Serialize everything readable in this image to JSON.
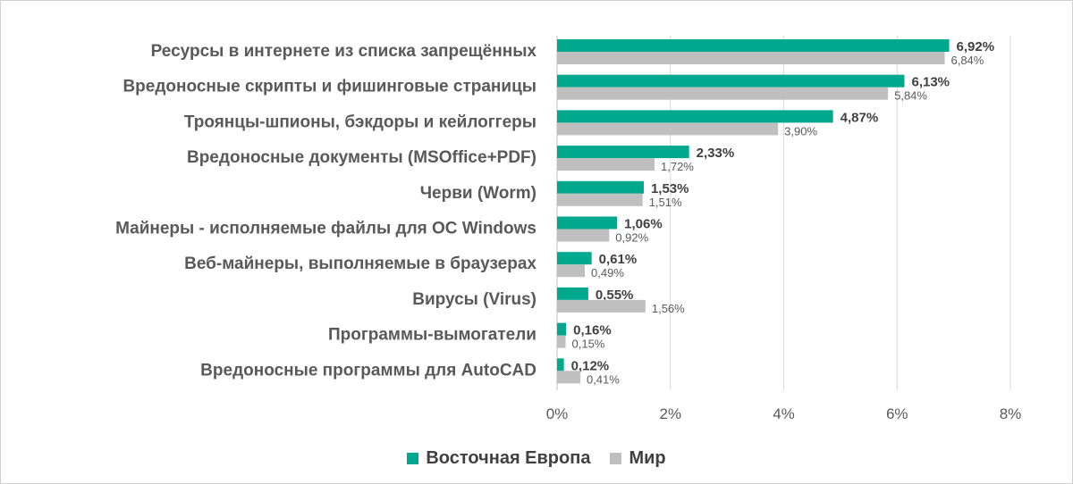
{
  "chart_data": {
    "type": "bar",
    "orientation": "horizontal",
    "categories": [
      "Ресурсы в интернете из списка запрещённых",
      "Вредоносные скрипты и фишинговые страницы",
      "Троянцы-шпионы, бэкдоры и кейлоггеры",
      "Вредоносные документы (MSOffice+PDF)",
      "Черви (Worm)",
      "Майнеры - исполняемые файлы для ОС Windows",
      "Веб-майнеры, выполняемые в браузерах",
      "Вирусы (Virus)",
      "Программы-вымогатели",
      "Вредоносные программы для AutoCAD"
    ],
    "series": [
      {
        "name": "Восточная Европа",
        "color": "#00a88e",
        "values": [
          6.92,
          6.13,
          4.87,
          2.33,
          1.53,
          1.06,
          0.61,
          0.55,
          0.16,
          0.12
        ],
        "labels": [
          "6,92%",
          "6,13%",
          "4,87%",
          "2,33%",
          "1,53%",
          "1,06%",
          "0,61%",
          "0,55%",
          "0,16%",
          "0,12%"
        ]
      },
      {
        "name": "Мир",
        "color": "#bfbfbf",
        "values": [
          6.84,
          5.84,
          3.9,
          1.72,
          1.51,
          0.92,
          0.49,
          1.56,
          0.15,
          0.41
        ],
        "labels": [
          "6,84%",
          "5,84%",
          "3,90%",
          "1,72%",
          "1,51%",
          "0,92%",
          "0,49%",
          "1,56%",
          "0,15%",
          "0,41%"
        ]
      }
    ],
    "xlim": [
      0,
      8
    ],
    "x_ticks": [
      0,
      2,
      4,
      6,
      8
    ],
    "x_tick_labels": [
      "0%",
      "2%",
      "4%",
      "6%",
      "8%"
    ],
    "grid": true,
    "legend_position": "bottom"
  }
}
